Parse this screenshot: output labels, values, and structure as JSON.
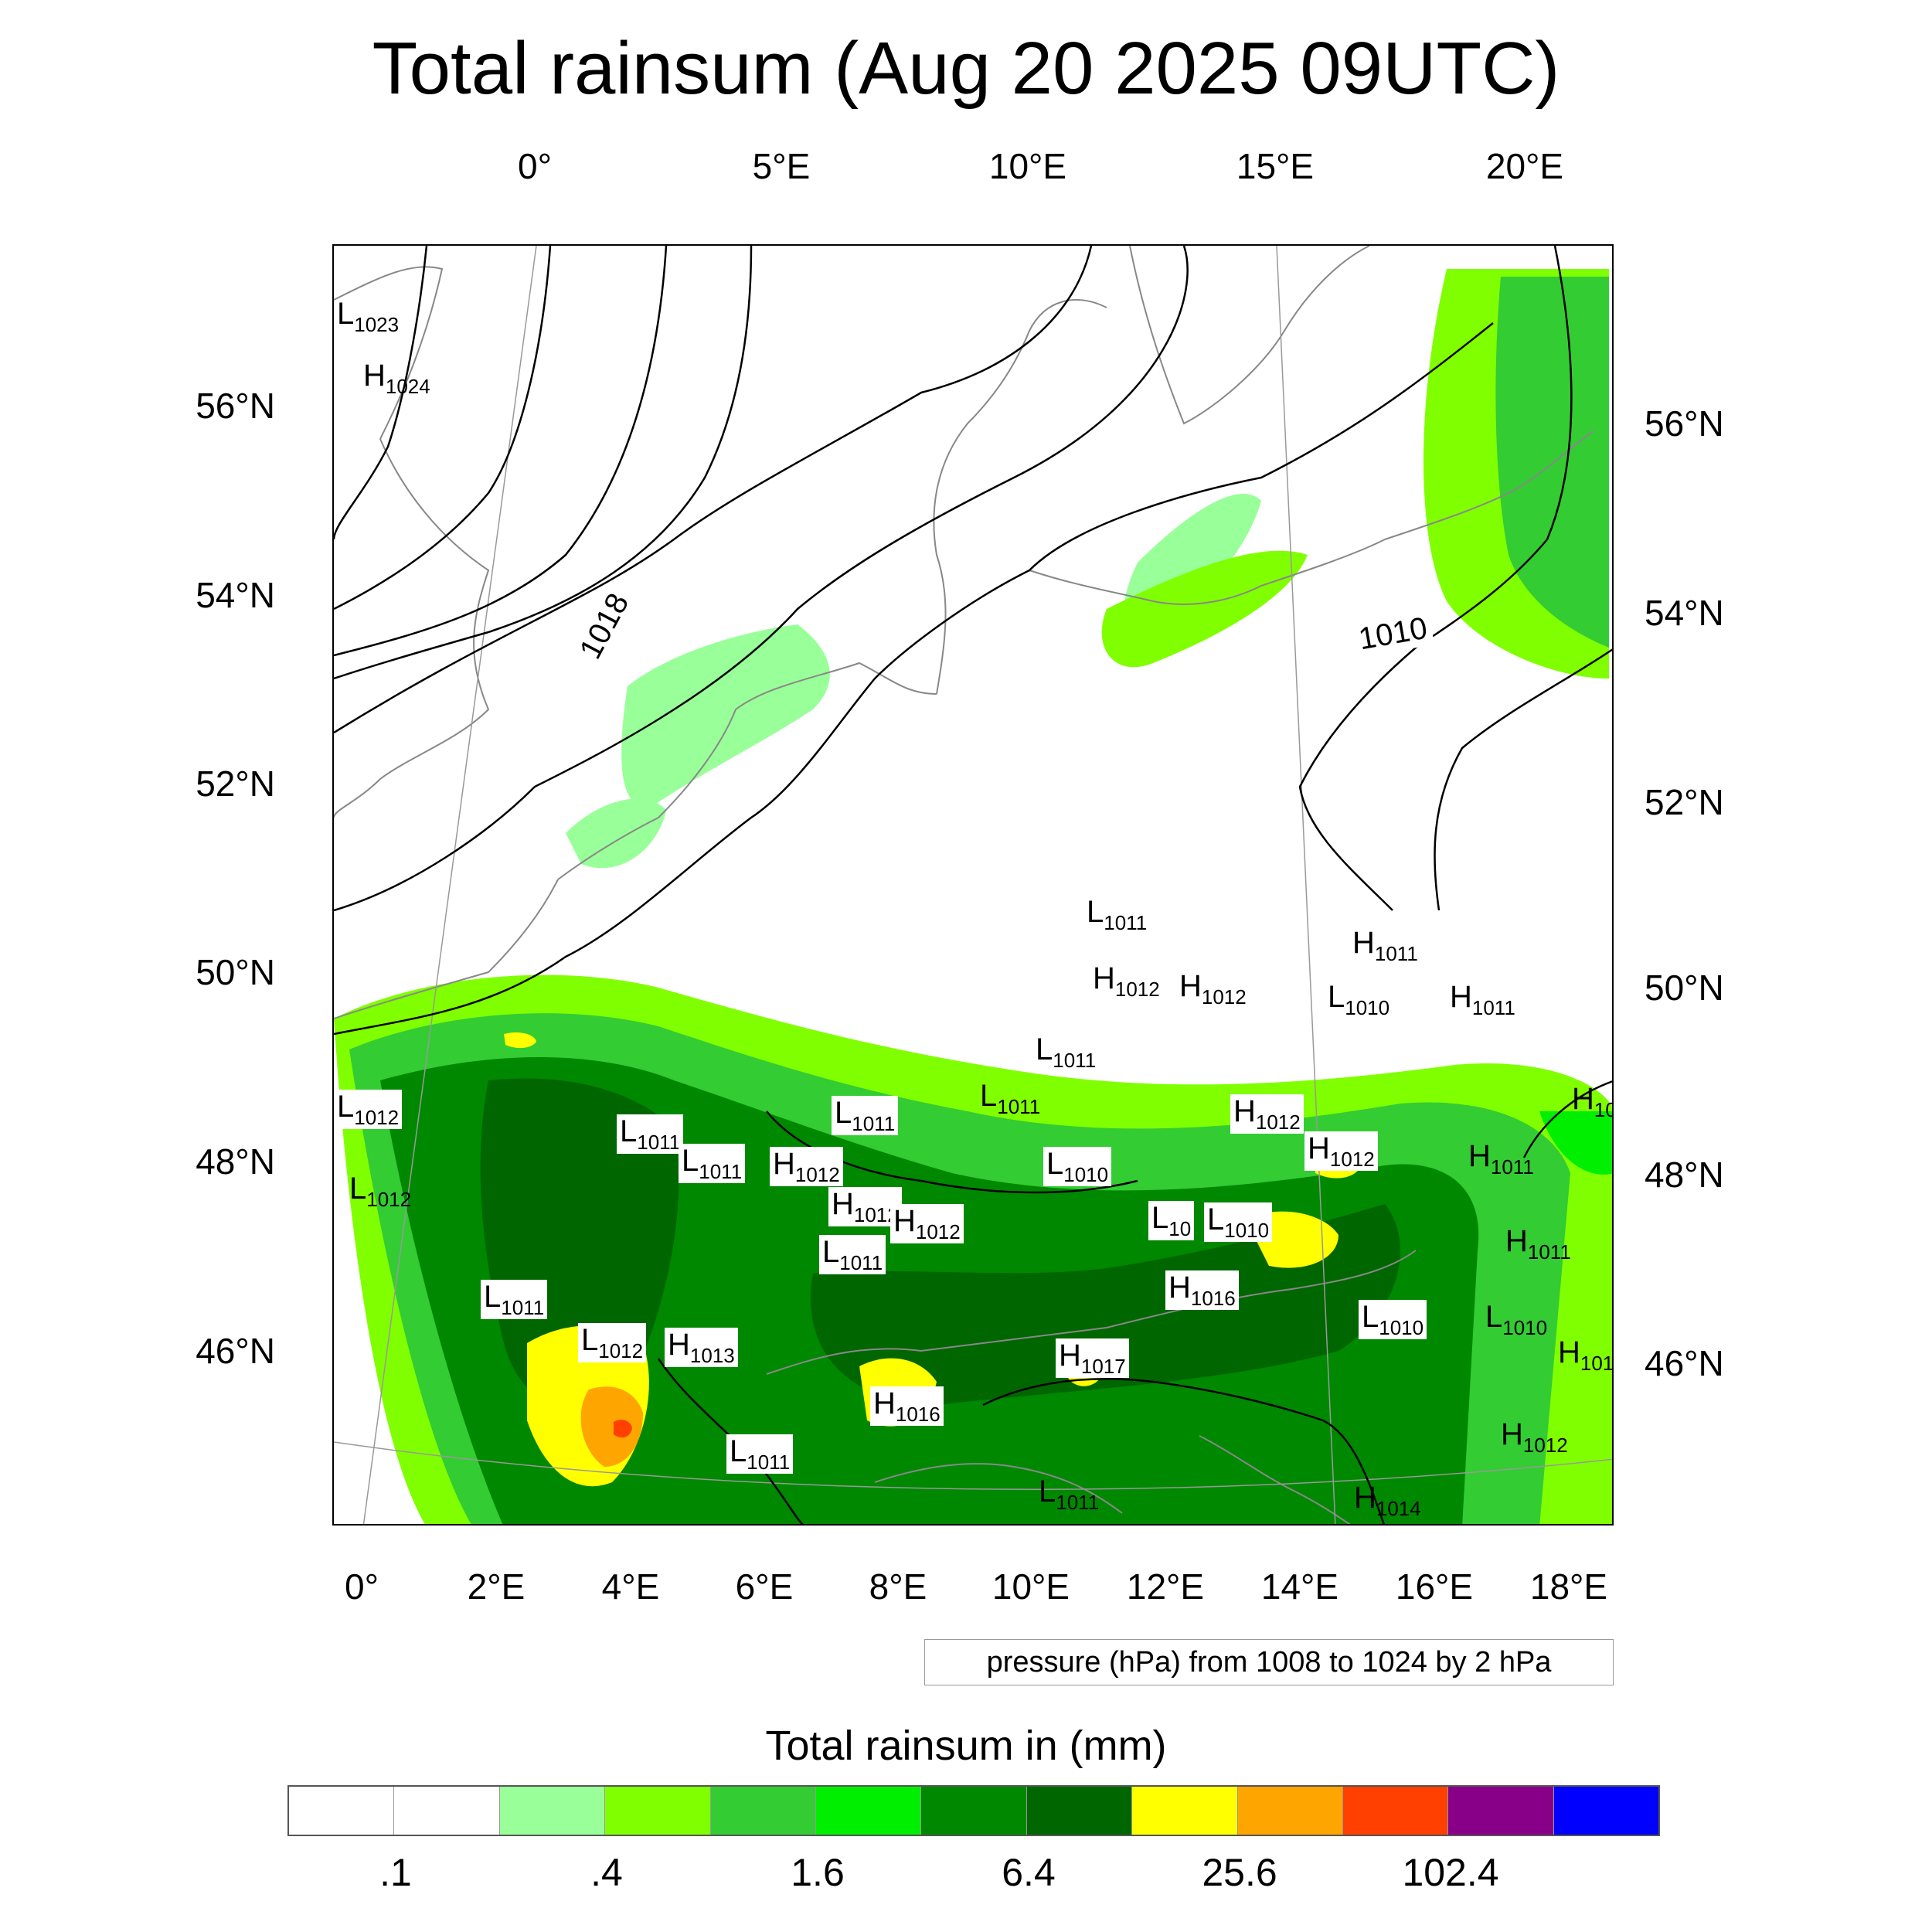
{
  "title": "Total rainsum (Aug 20 2025 09UTC)",
  "map": {
    "top_lon_labels": [
      "0°",
      "5°E",
      "10°E",
      "15°E",
      "20°E"
    ],
    "bottom_lon_labels": [
      "0°",
      "2°E",
      "4°E",
      "6°E",
      "8°E",
      "10°E",
      "12°E",
      "14°E",
      "16°E",
      "18°E"
    ],
    "left_lat_labels": [
      "56°N",
      "54°N",
      "52°N",
      "50°N",
      "48°N",
      "46°N"
    ],
    "right_lat_labels": [
      "56°N",
      "54°N",
      "52°N",
      "50°N",
      "48°N",
      "46°N"
    ],
    "isobar_labels": [
      "1018",
      "1010"
    ],
    "pressure_centers": [
      {
        "type": "L",
        "value": "1023"
      },
      {
        "type": "H",
        "value": "1024"
      },
      {
        "type": "L",
        "value": "1011"
      },
      {
        "type": "H",
        "value": "1012"
      },
      {
        "type": "H",
        "value": "1012"
      },
      {
        "type": "H",
        "value": "1011"
      },
      {
        "type": "L",
        "value": "1010"
      },
      {
        "type": "H",
        "value": "1011"
      },
      {
        "type": "L",
        "value": "1011"
      },
      {
        "type": "L",
        "value": "1011"
      },
      {
        "type": "L",
        "value": "1012"
      },
      {
        "type": "L",
        "value": "1012"
      },
      {
        "type": "L",
        "value": "1011"
      },
      {
        "type": "L",
        "value": "1011"
      },
      {
        "type": "L",
        "value": "1011"
      },
      {
        "type": "H",
        "value": "1012"
      },
      {
        "type": "H",
        "value": "1012"
      },
      {
        "type": "H",
        "value": "1012"
      },
      {
        "type": "L",
        "value": "1011"
      },
      {
        "type": "L",
        "value": "1010"
      },
      {
        "type": "H",
        "value": "1012"
      },
      {
        "type": "H",
        "value": "1012"
      },
      {
        "type": "H",
        "value": "1011"
      },
      {
        "type": "H",
        "value": "10"
      },
      {
        "type": "L",
        "value": "10"
      },
      {
        "type": "L",
        "value": "1010"
      },
      {
        "type": "H",
        "value": "1011"
      },
      {
        "type": "L",
        "value": "1011"
      },
      {
        "type": "H",
        "value": "1016"
      },
      {
        "type": "L",
        "value": "1010"
      },
      {
        "type": "L",
        "value": "1010"
      },
      {
        "type": "L",
        "value": "1012"
      },
      {
        "type": "H",
        "value": "1013"
      },
      {
        "type": "H",
        "value": "1017"
      },
      {
        "type": "H",
        "value": "101"
      },
      {
        "type": "H",
        "value": "1016"
      },
      {
        "type": "L",
        "value": "1011"
      },
      {
        "type": "H",
        "value": "1012"
      },
      {
        "type": "L",
        "value": "1011"
      },
      {
        "type": "H",
        "value": "1014"
      }
    ]
  },
  "pressure_note": "pressure (hPa) from 1008 to 1024 by 2 hPa",
  "colorbar": {
    "title": "Total rainsum in (mm)",
    "colors": [
      "#ffffff",
      "#ffffff",
      "#99ff99",
      "#80ff00",
      "#33cc33",
      "#00ee00",
      "#008800",
      "#006600",
      "#ffff00",
      "#ffa500",
      "#ff4000",
      "#880088",
      "#0000ff"
    ],
    "tick_labels": [
      ".1",
      ".4",
      "1.6",
      "6.4",
      "25.6",
      "102.4"
    ],
    "tick_values": [
      0.1,
      0.4,
      1.6,
      6.4,
      25.6,
      102.4
    ]
  },
  "field_colors": {
    "land_line": "#888888",
    "isobar": "#000000",
    "grid": "#999999"
  }
}
